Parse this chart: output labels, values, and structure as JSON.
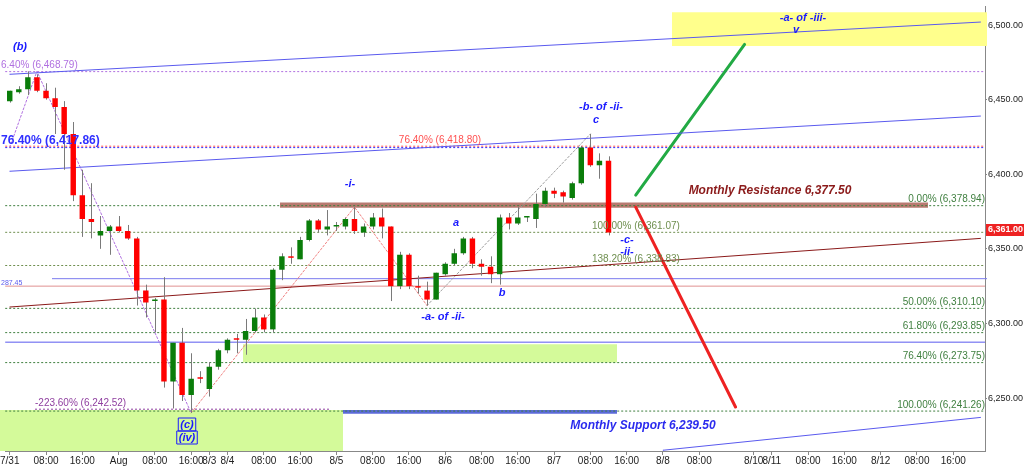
{
  "chart_data": {
    "type": "candlestick",
    "categories": [
      "7/31",
      null,
      null,
      null,
      "08:00",
      null,
      null,
      null,
      "16:00",
      null,
      null,
      null,
      "Aug",
      null,
      null,
      null,
      "08:00",
      null,
      null,
      null,
      "16:00",
      null,
      "8/3",
      null,
      "8/4",
      null,
      null,
      null,
      "08:00",
      null,
      null,
      null,
      "16:00",
      null,
      null,
      null,
      "8/5",
      null,
      null,
      null,
      "08:00",
      null,
      null,
      null,
      "16:00",
      null,
      null,
      null,
      "8/6",
      null,
      null,
      null,
      "08:00",
      null,
      null,
      null,
      "16:00",
      null,
      null,
      null,
      "8/7",
      null,
      null,
      null,
      "08:00",
      null,
      null,
      null,
      "16:00",
      null,
      null,
      null,
      "8/8",
      null,
      null,
      null,
      "08:00",
      null,
      null,
      null,
      null,
      null,
      "8/10",
      null,
      "8/11",
      null,
      null,
      null,
      "08:00",
      null,
      null,
      null,
      "16:00",
      null,
      null,
      null,
      "8/12",
      null,
      null,
      null,
      "08:00",
      null,
      null,
      null,
      "16:00",
      null,
      null,
      null
    ],
    "ohlc": [
      [
        6449,
        6456,
        6448,
        6456
      ],
      [
        6455,
        6459,
        6454,
        6457
      ],
      [
        6457,
        6469,
        6453,
        6465
      ],
      [
        6465,
        6467,
        6455,
        6456
      ],
      [
        6456,
        6461,
        6450,
        6451
      ],
      [
        6451,
        6458,
        6427,
        6445
      ],
      [
        6445,
        6449,
        6403,
        6427
      ],
      [
        6427,
        6435,
        6382,
        6386
      ],
      [
        6386,
        6403,
        6358,
        6370
      ],
      [
        6370,
        6394,
        6357,
        6368
      ],
      [
        6359,
        6372,
        6350,
        6362
      ],
      [
        6362,
        6366,
        6346,
        6365
      ],
      [
        6365,
        6372,
        6361,
        6362
      ],
      [
        6362,
        6366,
        6356,
        6357
      ],
      [
        6357,
        6358,
        6312,
        6322
      ],
      [
        6322,
        6326,
        6304,
        6314
      ],
      [
        6315,
        6317,
        6294,
        6316
      ],
      [
        6316,
        6331,
        6257,
        6261
      ],
      [
        6261,
        6287,
        6243,
        6287
      ],
      [
        6287,
        6297,
        6248,
        6252
      ],
      [
        6252,
        6280,
        6240,
        6263
      ],
      [
        6264,
        6268,
        6260,
        6263
      ],
      [
        6256,
        6274,
        6251,
        6271
      ],
      [
        6271,
        6283,
        6269,
        6282
      ],
      [
        6282,
        6290,
        6280,
        6289
      ],
      [
        6290,
        6293,
        6280,
        6289
      ],
      [
        6289,
        6303,
        6279,
        6295
      ],
      [
        6295,
        6310,
        6294,
        6304
      ],
      [
        6304,
        6306,
        6294,
        6296
      ],
      [
        6296,
        6337,
        6294,
        6336
      ],
      [
        6336,
        6347,
        6329,
        6345
      ],
      [
        6345,
        6351,
        6340,
        6344
      ],
      [
        6343,
        6358,
        6343,
        6356
      ],
      [
        6356,
        6370,
        6355,
        6369
      ],
      [
        6369,
        6370,
        6361,
        6363
      ],
      [
        6363,
        6376,
        6359,
        6365
      ],
      [
        6365,
        6368,
        6362,
        6366
      ],
      [
        6365,
        6371,
        6363,
        6370
      ],
      [
        6370,
        6378,
        6360,
        6362
      ],
      [
        6361,
        6367,
        6358,
        6365
      ],
      [
        6365,
        6374,
        6363,
        6371
      ],
      [
        6371,
        6377,
        6357,
        6365
      ],
      [
        6365,
        6365,
        6315,
        6325
      ],
      [
        6325,
        6348,
        6323,
        6346
      ],
      [
        6346,
        6347,
        6323,
        6325
      ],
      [
        6325,
        6332,
        6320,
        6324
      ],
      [
        6322,
        6328,
        6312,
        6316
      ],
      [
        6316,
        6334,
        6316,
        6334
      ],
      [
        6333,
        6341,
        6332,
        6340
      ],
      [
        6340,
        6350,
        6339,
        6347
      ],
      [
        6347,
        6358,
        6346,
        6357
      ],
      [
        6357,
        6358,
        6337,
        6340
      ],
      [
        6340,
        6343,
        6332,
        6338
      ],
      [
        6338,
        6345,
        6327,
        6333
      ],
      [
        6333,
        6373,
        6326,
        6371
      ],
      [
        6371,
        6374,
        6363,
        6367
      ],
      [
        6367,
        6378,
        6366,
        6371
      ],
      [
        6371,
        6372,
        6368,
        6372
      ],
      [
        6370,
        6387,
        6364,
        6380
      ],
      [
        6380,
        6391,
        6378,
        6389
      ],
      [
        6389,
        6391,
        6384,
        6387
      ],
      [
        6388,
        6389,
        6381,
        6385
      ],
      [
        6384,
        6395,
        6383,
        6394
      ],
      [
        6394,
        6419,
        6393,
        6418
      ],
      [
        6418,
        6427,
        6405,
        6406
      ],
      [
        6406,
        6414,
        6397,
        6409
      ],
      [
        6409,
        6412,
        6359,
        6361
      ],
      null,
      null,
      null,
      null,
      null,
      null,
      null,
      null,
      null,
      null,
      null,
      null,
      null,
      null,
      null,
      null,
      null,
      null,
      null,
      null,
      null,
      null,
      null,
      null,
      null,
      null,
      null,
      null,
      null,
      null,
      null,
      null,
      null,
      null,
      null,
      null,
      null,
      null,
      null,
      null,
      null
    ],
    "colors": [
      "#0a7d0a",
      "#0a7d0a",
      "#0a7d0a",
      "#ff0000",
      "#ff0000",
      "#ff0000",
      "#ff0000",
      "#ff0000",
      "#ff0000",
      "#ff0000",
      "#0a7d0a",
      "#0a7d0a",
      "#ff0000",
      "#ff0000",
      "#ff0000",
      "#ff0000",
      "#0a7d0a",
      "#ff0000",
      "#0a7d0a",
      "#ff0000",
      "#0a7d0a",
      "#ff0000",
      "#0a7d0a",
      "#0a7d0a",
      "#0a7d0a",
      "#ff0000",
      "#0a7d0a",
      "#0a7d0a",
      "#ff0000",
      "#0a7d0a",
      "#0a7d0a",
      "#ff0000",
      "#0a7d0a",
      "#0a7d0a",
      "#ff0000",
      "#0a7d0a",
      "#0a7d0a",
      "#0a7d0a",
      "#ff0000",
      "#0a7d0a",
      "#0a7d0a",
      "#ff0000",
      "#ff0000",
      "#0a7d0a",
      "#ff0000",
      "#ff0000",
      "#ff0000",
      "#0a7d0a",
      "#0a7d0a",
      "#0a7d0a",
      "#0a7d0a",
      "#ff0000",
      "#ff0000",
      "#ff0000",
      "#0a7d0a",
      "#ff0000",
      "#0a7d0a",
      "#0a7d0a",
      "#0a7d0a",
      "#0a7d0a",
      "#ff0000",
      "#ff0000",
      "#0a7d0a",
      "#0a7d0a",
      "#ff0000",
      "#0a7d0a",
      "#ff0000",
      null,
      null,
      null,
      null,
      null,
      null,
      null,
      null,
      null,
      null,
      null,
      null,
      null,
      null,
      null,
      null,
      null,
      null,
      null,
      null,
      null,
      null,
      null,
      null,
      null,
      null,
      null,
      null,
      null,
      null,
      null,
      null,
      null,
      null,
      null,
      null,
      null,
      null,
      null,
      null,
      null
    ],
    "series": [
      {
        "type": "line",
        "color": "#5a5aee",
        "line_style": "solid",
        "values": [
          6467,
          null,
          null,
          null,
          null,
          null,
          null,
          null,
          null,
          null,
          null,
          null,
          null,
          null,
          null,
          null,
          null,
          null,
          null,
          null,
          null,
          null,
          null,
          null,
          null,
          null,
          null,
          null,
          null,
          null,
          null,
          null,
          null,
          null,
          null,
          null,
          null,
          null,
          null,
          null,
          null,
          null,
          null,
          null,
          null,
          null,
          null,
          null,
          null,
          null,
          null,
          null,
          null,
          null,
          null,
          null,
          null,
          null,
          null,
          null,
          null,
          null,
          null,
          null,
          null,
          null,
          null,
          null,
          null,
          null,
          null,
          null,
          null,
          null,
          null,
          null,
          null,
          null,
          null,
          null,
          null,
          null,
          null,
          null,
          null,
          null,
          null,
          null,
          null,
          null,
          null,
          null,
          null,
          null,
          null,
          null,
          null,
          null,
          null,
          null,
          null,
          null,
          null,
          null,
          null,
          null,
          null,
          6502
        ]
      },
      {
        "type": "line",
        "color": "#5a5aee",
        "line_style": "solid",
        "values": [
          6402,
          null,
          null,
          null,
          null,
          null,
          null,
          null,
          null,
          null,
          null,
          null,
          null,
          null,
          null,
          null,
          null,
          null,
          null,
          null,
          null,
          null,
          null,
          null,
          null,
          null,
          null,
          null,
          null,
          null,
          null,
          null,
          null,
          null,
          null,
          null,
          null,
          null,
          null,
          null,
          null,
          null,
          null,
          null,
          null,
          null,
          null,
          null,
          null,
          null,
          null,
          null,
          null,
          null,
          null,
          null,
          null,
          null,
          null,
          null,
          null,
          null,
          null,
          null,
          null,
          null,
          null,
          null,
          null,
          null,
          null,
          null,
          null,
          null,
          null,
          null,
          null,
          null,
          null,
          null,
          null,
          null,
          null,
          null,
          null,
          null,
          null,
          null,
          null,
          null,
          null,
          null,
          null,
          null,
          null,
          null,
          null,
          null,
          null,
          null,
          null,
          null,
          null,
          null,
          null,
          null,
          null,
          6439
        ]
      },
      {
        "type": "line",
        "color": "#5a5aee",
        "line_style": "solid",
        "values": [
          null,
          null,
          null,
          null,
          null,
          null,
          null,
          null,
          null,
          null,
          null,
          null,
          null,
          null,
          null,
          null,
          null,
          null,
          null,
          null,
          null,
          null,
          null,
          null,
          null,
          null,
          null,
          null,
          null,
          null,
          null,
          null,
          null,
          null,
          null,
          null,
          null,
          null,
          null,
          null,
          null,
          null,
          null,
          null,
          null,
          null,
          null,
          null,
          null,
          null,
          null,
          null,
          null,
          null,
          null,
          null,
          null,
          null,
          null,
          null,
          null,
          null,
          null,
          null,
          null,
          null,
          null,
          null,
          null,
          null,
          null,
          null,
          6215,
          null,
          null,
          null,
          null,
          null,
          null,
          null,
          null,
          null,
          null,
          null,
          null,
          null,
          null,
          null,
          null,
          null,
          null,
          null,
          null,
          null,
          null,
          null,
          null,
          null,
          null,
          null,
          null,
          null,
          null,
          null,
          null,
          null,
          null,
          6237
        ]
      },
      {
        "type": "line",
        "color": "#8b1a1a",
        "line_style": "solid",
        "values": [
          6311,
          null,
          null,
          null,
          null,
          null,
          null,
          null,
          null,
          null,
          null,
          null,
          null,
          null,
          null,
          null,
          null,
          null,
          null,
          null,
          null,
          null,
          null,
          null,
          null,
          null,
          null,
          null,
          null,
          null,
          null,
          null,
          null,
          null,
          null,
          null,
          null,
          null,
          null,
          null,
          null,
          null,
          null,
          null,
          null,
          null,
          null,
          null,
          null,
          null,
          null,
          null,
          null,
          null,
          null,
          null,
          null,
          null,
          null,
          null,
          null,
          null,
          null,
          null,
          null,
          null,
          null,
          null,
          null,
          null,
          null,
          null,
          null,
          null,
          null,
          null,
          null,
          null,
          null,
          null,
          null,
          null,
          null,
          null,
          null,
          null,
          null,
          null,
          null,
          null,
          null,
          null,
          null,
          null,
          null,
          null,
          null,
          null,
          null,
          null,
          null,
          null,
          null,
          null,
          null,
          null,
          null,
          6357
        ]
      },
      {
        "type": "line",
        "color": "#22aa44",
        "line_style": "solid",
        "values": [
          null,
          null,
          null,
          null,
          null,
          null,
          null,
          null,
          null,
          null,
          null,
          null,
          null,
          null,
          null,
          null,
          null,
          null,
          null,
          null,
          null,
          null,
          null,
          null,
          null,
          null,
          null,
          null,
          null,
          null,
          null,
          null,
          null,
          null,
          null,
          null,
          null,
          null,
          null,
          null,
          null,
          null,
          null,
          null,
          null,
          null,
          null,
          null,
          null,
          null,
          null,
          null,
          null,
          null,
          null,
          null,
          null,
          null,
          null,
          null,
          null,
          null,
          null,
          null,
          null,
          null,
          null,
          null,
          null,
          6386,
          null,
          null,
          null,
          null,
          null,
          null,
          null,
          null,
          null,
          null,
          null,
          6487,
          null,
          null,
          null,
          null,
          null,
          null,
          null,
          null,
          null,
          null,
          null,
          null,
          null,
          null,
          null,
          null,
          null,
          null,
          null,
          null,
          null,
          null,
          null,
          null,
          null,
          null
        ]
      },
      {
        "type": "line",
        "color": "#ee2222",
        "line_style": "solid",
        "values": [
          null,
          null,
          null,
          null,
          null,
          null,
          null,
          null,
          null,
          null,
          null,
          null,
          null,
          null,
          null,
          null,
          null,
          null,
          null,
          null,
          null,
          null,
          null,
          null,
          null,
          null,
          null,
          null,
          null,
          null,
          null,
          null,
          null,
          null,
          null,
          null,
          null,
          null,
          null,
          null,
          null,
          null,
          null,
          null,
          null,
          null,
          null,
          null,
          null,
          null,
          null,
          null,
          null,
          null,
          null,
          null,
          null,
          null,
          null,
          null,
          null,
          null,
          null,
          null,
          null,
          null,
          null,
          null,
          null,
          6378,
          null,
          null,
          null,
          null,
          null,
          null,
          null,
          null,
          null,
          null,
          6244,
          null,
          null,
          null,
          null,
          null,
          null,
          null,
          null,
          null,
          null,
          null,
          null,
          null,
          null,
          null,
          null,
          null,
          null,
          null,
          null,
          null,
          null,
          null,
          null,
          null,
          null,
          null
        ]
      },
      {
        "type": "line",
        "color": "#b070e0",
        "line_style": "dotted",
        "values": [
          6418,
          null,
          null,
          6469,
          null,
          null,
          null,
          null,
          null,
          null,
          null,
          null,
          null,
          null,
          null,
          null,
          null,
          null,
          null,
          null,
          6240,
          null,
          null,
          null,
          null,
          null,
          null,
          null,
          null,
          null,
          null,
          null,
          null,
          null,
          null,
          null,
          null,
          null,
          null,
          null,
          null,
          null,
          null,
          null,
          null,
          null,
          null,
          null,
          null,
          null,
          null,
          null,
          null,
          null,
          null,
          null,
          null,
          null,
          null,
          null,
          null,
          null,
          null,
          null,
          null,
          null,
          null,
          null,
          null,
          null,
          null,
          null,
          null,
          null,
          null,
          null,
          null,
          null,
          null,
          null,
          null,
          null,
          null,
          null,
          null,
          null,
          null,
          null,
          null,
          null,
          null,
          null,
          null,
          null,
          null,
          null,
          null,
          null,
          null,
          null,
          null,
          null,
          null,
          null,
          null,
          null,
          null,
          null
        ]
      },
      {
        "type": "line",
        "color": "#f08080",
        "line_style": "dotted",
        "values": [
          null,
          null,
          null,
          null,
          null,
          null,
          null,
          null,
          null,
          null,
          null,
          null,
          null,
          null,
          null,
          null,
          null,
          null,
          null,
          null,
          6240,
          null,
          null,
          null,
          null,
          null,
          null,
          null,
          null,
          null,
          null,
          null,
          null,
          null,
          null,
          null,
          null,
          null,
          6378,
          null,
          null,
          null,
          null,
          null,
          null,
          null,
          6312,
          null,
          null,
          null,
          null,
          null,
          null,
          null,
          null,
          null,
          null,
          null,
          null,
          null,
          null,
          null,
          null,
          null,
          null,
          null,
          null,
          null,
          null,
          null,
          null,
          null,
          null,
          null,
          null,
          null,
          null,
          null,
          null,
          null,
          null,
          null,
          null,
          null,
          null,
          null,
          null,
          null,
          null,
          null,
          null,
          null,
          null,
          null,
          null,
          null,
          null,
          null,
          null,
          null,
          null,
          null,
          null,
          null,
          null,
          null,
          null,
          null
        ]
      },
      {
        "type": "line",
        "color": "#a0a0a0",
        "line_style": "dotted",
        "values": [
          null,
          null,
          null,
          null,
          null,
          null,
          null,
          null,
          null,
          null,
          null,
          null,
          null,
          null,
          null,
          null,
          null,
          null,
          null,
          null,
          null,
          null,
          null,
          null,
          null,
          null,
          null,
          null,
          null,
          null,
          null,
          null,
          null,
          null,
          null,
          null,
          null,
          null,
          null,
          null,
          null,
          null,
          null,
          null,
          null,
          null,
          6312,
          null,
          null,
          null,
          null,
          null,
          null,
          null,
          null,
          null,
          null,
          null,
          null,
          null,
          null,
          null,
          null,
          null,
          6427,
          null,
          null,
          null,
          null,
          null,
          null,
          null,
          null,
          null,
          null,
          null,
          null,
          null,
          null,
          null,
          null,
          null,
          null,
          null,
          null,
          null,
          null,
          null,
          null,
          null,
          null,
          null,
          null,
          null,
          null,
          null,
          null,
          null,
          null,
          null,
          null,
          null,
          null,
          null,
          null,
          null,
          null,
          null
        ]
      }
    ],
    "ylim": [
      6214.5,
      6512.5
    ],
    "yticks": [
      {
        "value": 6250,
        "label": "6,250.00"
      },
      {
        "value": 6300,
        "label": "6,300.00"
      },
      {
        "value": 6350,
        "label": "6,350.00"
      },
      {
        "value": 6400,
        "label": "6,400.00"
      },
      {
        "value": 6450,
        "label": "6,450.00"
      },
      {
        "value": 6500,
        "label": "6,500.00"
      }
    ],
    "ref_lines": [
      {
        "axis": "y",
        "value": 6468.79,
        "label": "6.40% (6,468.79)",
        "color": "#b070e0",
        "line_style": "dotted"
      },
      {
        "axis": "y",
        "value": 6418.8,
        "label": "76.40% (6,418.80)",
        "color": "#ff5050",
        "line_style": "dotted"
      },
      {
        "axis": "y",
        "value": 6417.86,
        "label": "76.40% (6,417.86)",
        "color": "#3030ff",
        "line_style": "dotted"
      },
      {
        "axis": "y",
        "value": 6378.94,
        "label": "0.00% (6,378.94)",
        "color": "#3f7f3f",
        "line_style": "dotted"
      },
      {
        "axis": "y",
        "value": 6361.07,
        "label": "100.00% (6,361.07)",
        "color": "#6f8f4f",
        "line_style": "dotted"
      },
      {
        "axis": "y",
        "value": 6338.83,
        "label": "138.20% (6,338.83)",
        "color": "#6f8f4f",
        "line_style": "dotted"
      },
      {
        "axis": "y",
        "value": 6310.1,
        "label": "50.00% (6,310.10)",
        "color": "#3f7f3f",
        "line_style": "dotted"
      },
      {
        "axis": "y",
        "value": 6293.85,
        "label": "61.80% (6,293.85)",
        "color": "#3f7f3f",
        "line_style": "dotted"
      },
      {
        "axis": "y",
        "value": 6273.75,
        "label": "76.40% (6,273.75)",
        "color": "#3f7f3f",
        "line_style": "dotted"
      },
      {
        "axis": "y",
        "value": 6241.26,
        "label": "100.00% (6,241.26)",
        "color": "#3f7f3f",
        "line_style": "dotted"
      },
      {
        "axis": "y",
        "value": 6242.52,
        "label": "-223.60% (6,242.52)",
        "color": "#9040a0",
        "line_style": "dotted"
      },
      {
        "axis": "y",
        "value": 6287.45,
        "color": "#5a5aee",
        "line_style": "solid"
      },
      {
        "axis": "y",
        "value": 6330,
        "color": "#7a7aee",
        "line_style": "solid"
      },
      {
        "axis": "y",
        "value": 6325,
        "color": "#e09090",
        "line_style": "solid"
      }
    ],
    "bands": [
      {
        "axis": "y",
        "from": 6377.5,
        "to": 6381,
        "label": "Monthly Resistance 6,377.50",
        "color": "#b87a70"
      },
      {
        "axis": "y",
        "from": 6239.5,
        "to": 6242,
        "label": "Monthly Support 6,239.50",
        "color": "#5b6ad8"
      },
      {
        "axis": "y",
        "from": 6273.75,
        "to": 6286,
        "color": "#d4fa9a"
      },
      {
        "axis": "y",
        "from": 6486,
        "to": 6508.5,
        "color": "#ffff8c"
      },
      {
        "axis": "y",
        "from": 6214.5,
        "to": 6242,
        "color": "#d4fa9a"
      }
    ],
    "annotations": [
      "(b)",
      "-i-",
      "a",
      "b",
      "-a- of -ii-",
      "-b- of -ii-",
      "c",
      "-c-",
      "-ii-",
      "(c)",
      "(iv)",
      "-a- of -iii-",
      "v",
      "287.45",
      "6,361.00"
    ],
    "marker": "none"
  }
}
